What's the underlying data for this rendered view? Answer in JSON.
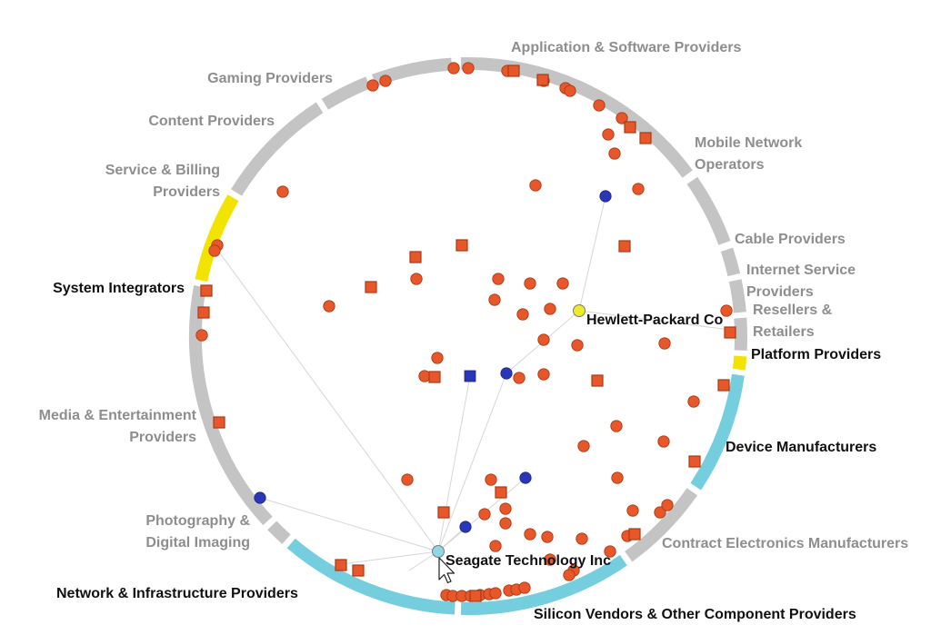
{
  "colors": {
    "segment_inactive": "#c4c4c4",
    "segment_highlight_yellow": "#f2e400",
    "segment_highlight_cyan": "#74cede",
    "node_orange": "#e8572a",
    "node_stroke": "#a83a15",
    "node_blue": "#2a36b8",
    "selected_yellow": "#ecec2a",
    "selected_cyan": "#8fd6e6",
    "link": "#d6d6d6"
  },
  "segments": [
    {
      "id": "application-software",
      "lines": [
        "Application & Software Providers"
      ],
      "highlight": "none"
    },
    {
      "id": "mobile-network",
      "lines": [
        "Mobile Network",
        "Operators"
      ],
      "highlight": "none"
    },
    {
      "id": "cable",
      "lines": [
        "Cable Providers"
      ],
      "highlight": "none"
    },
    {
      "id": "internet-service",
      "lines": [
        "Internet Service",
        "Providers"
      ],
      "highlight": "none"
    },
    {
      "id": "resellers",
      "lines": [
        "Resellers &",
        "Retailers"
      ],
      "highlight": "none"
    },
    {
      "id": "platform",
      "lines": [
        "Platform Providers"
      ],
      "highlight": "yellow"
    },
    {
      "id": "device-manufacturers",
      "lines": [
        "Device Manufacturers"
      ],
      "highlight": "cyan"
    },
    {
      "id": "contract-electronics",
      "lines": [
        "Contract Electronics Manufacturers"
      ],
      "highlight": "none"
    },
    {
      "id": "silicon-vendors",
      "lines": [
        "Silicon Vendors & Other Component Providers"
      ],
      "highlight": "cyan"
    },
    {
      "id": "network-infrastructure",
      "lines": [
        "Network & Infrastructure Providers"
      ],
      "highlight": "cyan"
    },
    {
      "id": "photography",
      "lines": [
        "Photography &",
        "Digital Imaging"
      ],
      "highlight": "none"
    },
    {
      "id": "media-entertainment",
      "lines": [
        "Media & Entertainment",
        "Providers"
      ],
      "highlight": "none"
    },
    {
      "id": "system-integrators",
      "lines": [
        "System Integrators"
      ],
      "highlight": "yellow"
    },
    {
      "id": "service-billing",
      "lines": [
        "Service & Billing",
        "Providers"
      ],
      "highlight": "none"
    },
    {
      "id": "content",
      "lines": [
        "Content Providers"
      ],
      "highlight": "none"
    },
    {
      "id": "gaming",
      "lines": [
        "Gaming Providers"
      ],
      "highlight": "none"
    }
  ],
  "selected_companies": [
    {
      "name": "Hewlett-Packard Co",
      "color": "yellow"
    },
    {
      "name": "Seagate Technology Inc",
      "color": "cyan"
    }
  ]
}
